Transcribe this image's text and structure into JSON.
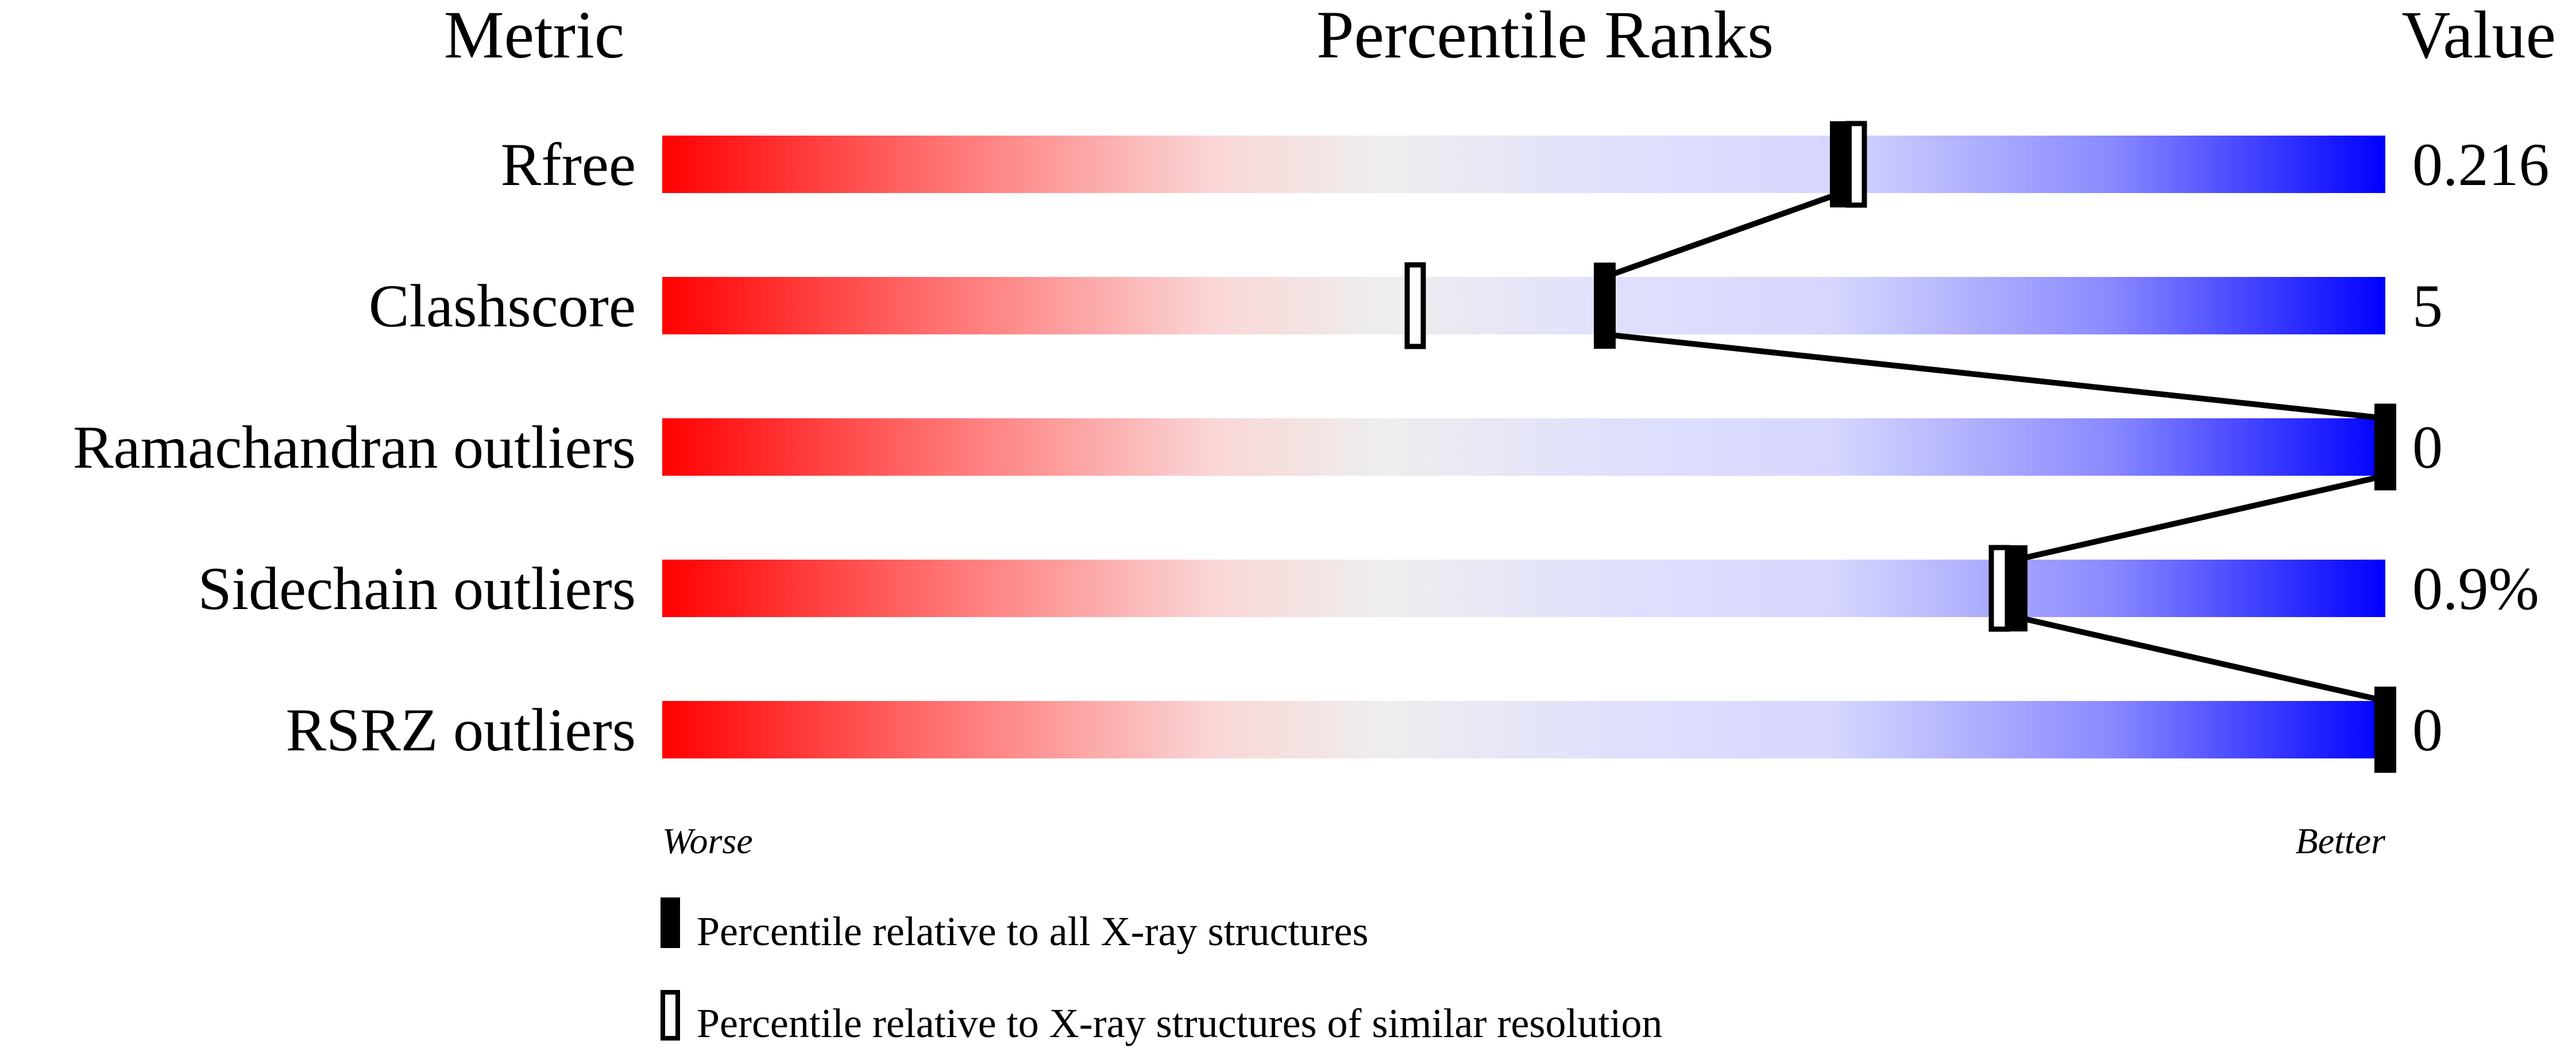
{
  "chart_data": {
    "type": "percentile-slider",
    "headers": {
      "metric": "Metric",
      "ranks": "Percentile Ranks",
      "value": "Value"
    },
    "xlim": [
      0,
      100
    ],
    "metrics": [
      {
        "name": "Rfree",
        "value": "0.216",
        "percentile_all": 68.4,
        "percentile_similar": 69.3
      },
      {
        "name": "Clashscore",
        "value": "5",
        "percentile_all": 54.7,
        "percentile_similar": 43.7
      },
      {
        "name": "Ramachandran outliers",
        "value": "0",
        "percentile_all": 100,
        "percentile_similar": 100
      },
      {
        "name": "Sidechain outliers",
        "value": "0.9%",
        "percentile_all": 78.6,
        "percentile_similar": 77.6
      },
      {
        "name": "RSRZ outliers",
        "value": "0",
        "percentile_all": 100,
        "percentile_similar": null
      }
    ],
    "scale_labels": {
      "left": "Worse",
      "right": "Better"
    },
    "legend": [
      {
        "marker": "filled",
        "label": "Percentile relative to all X-ray structures"
      },
      {
        "marker": "hollow",
        "label": "Percentile relative to X-ray structures of similar resolution"
      }
    ],
    "colors": {
      "worse": "#ff0000",
      "middle": "#eeeeee",
      "better": "#0000ff",
      "marker": "#000000"
    }
  }
}
